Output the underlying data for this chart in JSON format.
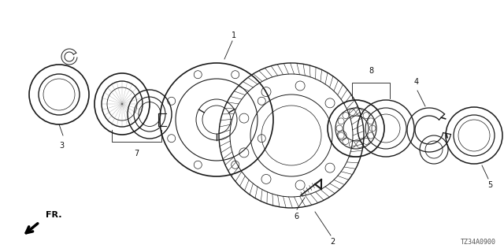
{
  "background_color": "#ffffff",
  "diagram_code": "TZ34A0900",
  "line_color": "#1a1a1a",
  "text_color": "#111111",
  "figsize": [
    6.4,
    3.2
  ],
  "dpi": 100
}
